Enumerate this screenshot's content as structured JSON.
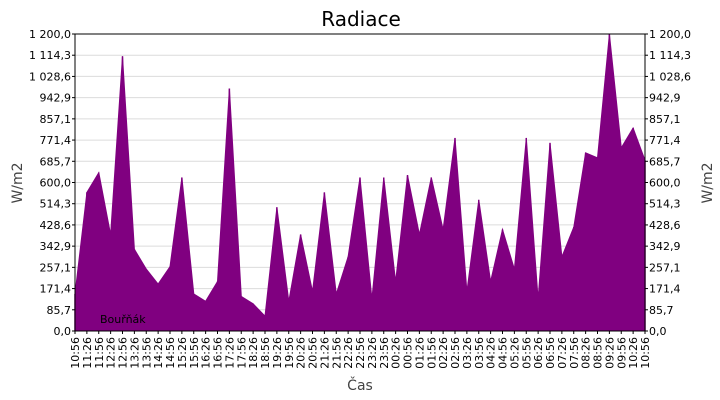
{
  "colors": {
    "series": "#800080",
    "grid": "#dcdcdc",
    "frame": "#000000"
  },
  "chart_data": {
    "type": "area",
    "title": "Radiace",
    "xlabel": "Čas",
    "ylabel": "W/m2",
    "ylabel_right": "W/m2",
    "ylim": [
      0,
      1200
    ],
    "y_ticks": [
      "0,0",
      "85,7",
      "171,4",
      "257,1",
      "342,9",
      "428,6",
      "514,3",
      "600,0",
      "685,7",
      "771,4",
      "857,1",
      "942,9",
      "1 028,6",
      "1 114,3",
      "1 200,0"
    ],
    "grid": true,
    "legend_position": "bottom-left",
    "x_ticks": [
      "10:56",
      "11:26",
      "11:56",
      "12:26",
      "12:56",
      "13:26",
      "13:56",
      "14:26",
      "14:56",
      "15:26",
      "15:56",
      "16:26",
      "16:56",
      "17:26",
      "17:56",
      "18:26",
      "18:56",
      "19:26",
      "19:56",
      "20:26",
      "20:56",
      "21:26",
      "21:56",
      "22:26",
      "22:56",
      "23:26",
      "23:56",
      "00:26",
      "00:56",
      "01:26",
      "01:56",
      "02:26",
      "02:56",
      "03:26",
      "03:56",
      "04:26",
      "04:56",
      "05:26",
      "05:56",
      "06:26",
      "06:56",
      "07:26",
      "07:56",
      "08:26",
      "08:56",
      "09:26",
      "09:56",
      "10:26",
      "10:56"
    ],
    "series": [
      {
        "name": "Bouřňák",
        "x": [
          "10:56",
          "11:26",
          "11:56",
          "12:26",
          "12:56",
          "13:26",
          "13:56",
          "14:26",
          "14:56",
          "15:26",
          "15:56",
          "16:26",
          "16:56",
          "17:26",
          "17:56",
          "18:26",
          "18:56",
          "19:26",
          "19:56",
          "20:26",
          "20:56",
          "21:26",
          "21:56",
          "22:26",
          "22:56",
          "23:26",
          "23:56",
          "00:26",
          "00:56",
          "01:26",
          "01:56",
          "02:26",
          "02:56",
          "03:26",
          "03:56",
          "04:26",
          "04:56",
          "05:26",
          "05:56",
          "06:26",
          "06:56",
          "07:26",
          "07:56",
          "08:26",
          "08:56",
          "09:26",
          "09:56",
          "10:26",
          "10:56"
        ],
        "values": [
          150,
          560,
          640,
          390,
          1110,
          330,
          250,
          190,
          260,
          620,
          150,
          120,
          200,
          980,
          140,
          110,
          60,
          500,
          120,
          390,
          160,
          560,
          150,
          300,
          620,
          130,
          620,
          200,
          630,
          390,
          620,
          410,
          780,
          160,
          530,
          200,
          410,
          250,
          780,
          130,
          760,
          300,
          420,
          720,
          700,
          1200,
          740,
          820,
          690
        ]
      }
    ]
  }
}
